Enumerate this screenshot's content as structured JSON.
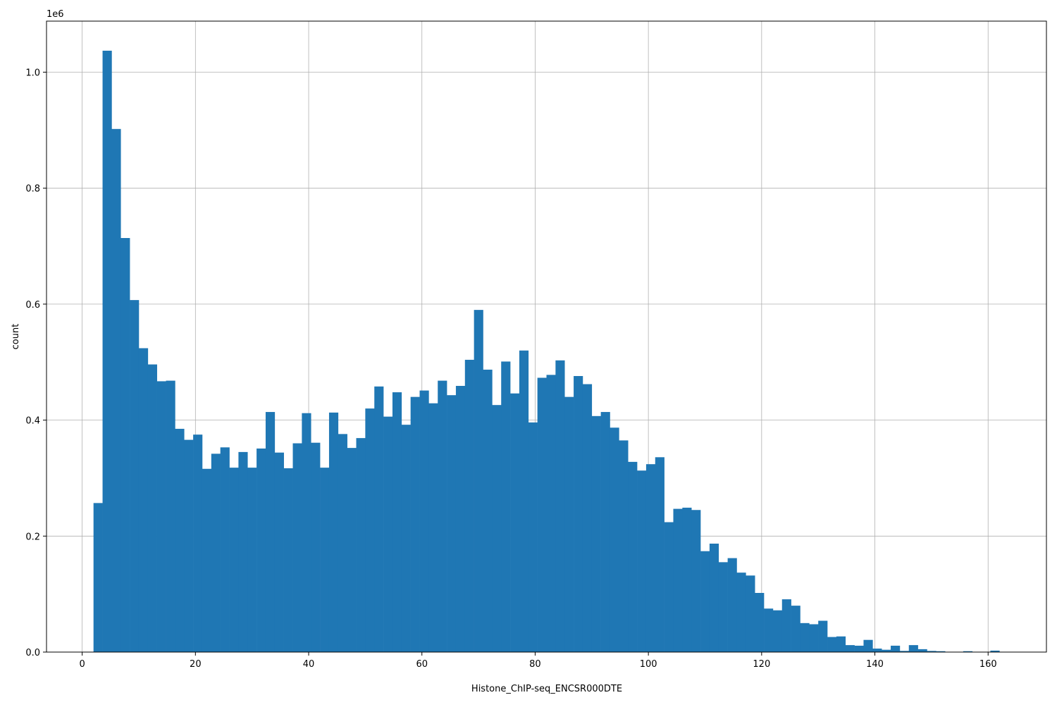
{
  "chart_data": {
    "type": "bar",
    "xlabel": "Histone_ChIP-seq_ENCSR000DTE",
    "ylabel": "count",
    "y_offset_label": "1e6",
    "xlim": [
      -6.3,
      170.3
    ],
    "ylim": [
      0,
      1088000
    ],
    "x_ticks": [
      0,
      20,
      40,
      60,
      80,
      100,
      120,
      140,
      160
    ],
    "x_tick_labels": [
      "0",
      "20",
      "40",
      "60",
      "80",
      "100",
      "120",
      "140",
      "160"
    ],
    "y_ticks": [
      0,
      200000,
      400000,
      600000,
      800000,
      1000000
    ],
    "y_tick_labels": [
      "0.0",
      "0.2",
      "0.4",
      "0.6",
      "0.8",
      "1.0"
    ],
    "grid": true,
    "bar_color": "#1f77b4",
    "bin_start": 2.0,
    "bin_width": 1.6,
    "values": [
      257000,
      1037000,
      902000,
      714000,
      607000,
      524000,
      496000,
      467000,
      468000,
      385000,
      366000,
      375000,
      316000,
      342000,
      353000,
      318000,
      345000,
      318000,
      351000,
      414000,
      344000,
      317000,
      360000,
      412000,
      361000,
      318000,
      413000,
      376000,
      352000,
      369000,
      420000,
      458000,
      406000,
      448000,
      392000,
      440000,
      451000,
      429000,
      468000,
      443000,
      459000,
      504000,
      590000,
      487000,
      426000,
      501000,
      446000,
      520000,
      396000,
      473000,
      478000,
      503000,
      440000,
      476000,
      462000,
      407000,
      414000,
      387000,
      365000,
      328000,
      313000,
      324000,
      336000,
      224000,
      247000,
      249000,
      245000,
      174000,
      187000,
      155000,
      162000,
      137000,
      132000,
      102000,
      75000,
      72000,
      91000,
      80000,
      50000,
      48000,
      54000,
      26000,
      27000,
      12000,
      11000,
      21000,
      6000,
      4000,
      11000,
      2000,
      12000,
      5000,
      2000,
      1500,
      0,
      0,
      1500,
      0,
      0,
      2500
    ]
  }
}
